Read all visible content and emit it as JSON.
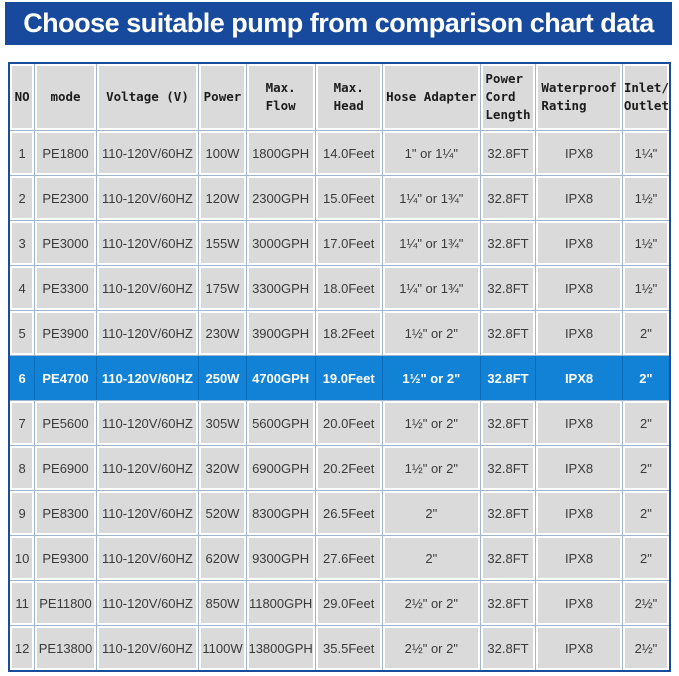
{
  "banner": {
    "title": "Choose suitable pump from comparison chart data",
    "bg_color": "#174A9D",
    "text_color": "#ffffff"
  },
  "colors": {
    "cell_bg": "#DADADA",
    "grid_line": "#9FB6CC",
    "outer_border": "#1A4C9E",
    "highlight_row_bg": "#1182D5",
    "highlight_text": "#ffffff"
  },
  "chart_data": {
    "type": "table",
    "title": "Choose suitable pump from comparison chart data",
    "columns": [
      "NO",
      "mode",
      "Voltage (V)",
      "Power",
      "Max.\nFlow",
      "Max.\nHead",
      "Hose Adapter",
      "Power\nCord\nLength",
      "Waterproof\nRating",
      "Inlet/\nOutlet"
    ],
    "highlighted_row_no": "6",
    "rows": [
      {
        "highlight": false,
        "cells": [
          "1",
          "PE1800",
          "110-120V/60HZ",
          "100W",
          "1800GPH",
          "14.0Feet",
          "1\" or 1¼\"",
          "32.8FT",
          "IPX8",
          "1¼\""
        ]
      },
      {
        "highlight": false,
        "cells": [
          "2",
          "PE2300",
          "110-120V/60HZ",
          "120W",
          "2300GPH",
          "15.0Feet",
          "1¼\" or 1¾\"",
          "32.8FT",
          "IPX8",
          "1½\""
        ]
      },
      {
        "highlight": false,
        "cells": [
          "3",
          "PE3000",
          "110-120V/60HZ",
          "155W",
          "3000GPH",
          "17.0Feet",
          "1¼\" or 1¾\"",
          "32.8FT",
          "IPX8",
          "1½\""
        ]
      },
      {
        "highlight": false,
        "cells": [
          "4",
          "PE3300",
          "110-120V/60HZ",
          "175W",
          "3300GPH",
          "18.0Feet",
          "1¼\" or 1¾\"",
          "32.8FT",
          "IPX8",
          "1½\""
        ]
      },
      {
        "highlight": false,
        "cells": [
          "5",
          "PE3900",
          "110-120V/60HZ",
          "230W",
          "3900GPH",
          "18.2Feet",
          "1½\" or 2\"",
          "32.8FT",
          "IPX8",
          "2\""
        ]
      },
      {
        "highlight": true,
        "cells": [
          "6",
          "PE4700",
          "110-120V/60HZ",
          "250W",
          "4700GPH",
          "19.0Feet",
          "1½\" or 2\"",
          "32.8FT",
          "IPX8",
          "2\""
        ]
      },
      {
        "highlight": false,
        "cells": [
          "7",
          "PE5600",
          "110-120V/60HZ",
          "305W",
          "5600GPH",
          "20.0Feet",
          "1½\" or 2\"",
          "32.8FT",
          "IPX8",
          "2\""
        ]
      },
      {
        "highlight": false,
        "cells": [
          "8",
          "PE6900",
          "110-120V/60HZ",
          "320W",
          "6900GPH",
          "20.2Feet",
          "1½\" or 2\"",
          "32.8FT",
          "IPX8",
          "2\""
        ]
      },
      {
        "highlight": false,
        "cells": [
          "9",
          "PE8300",
          "110-120V/60HZ",
          "520W",
          "8300GPH",
          "26.5Feet",
          "2\"",
          "32.8FT",
          "IPX8",
          "2\""
        ]
      },
      {
        "highlight": false,
        "cells": [
          "10",
          "PE9300",
          "110-120V/60HZ",
          "620W",
          "9300GPH",
          "27.6Feet",
          "2\"",
          "32.8FT",
          "IPX8",
          "2\""
        ]
      },
      {
        "highlight": false,
        "cells": [
          "11",
          "PE11800",
          "110-120V/60HZ",
          "850W",
          "11800GPH",
          "29.0Feet",
          "2½\" or 2\"",
          "32.8FT",
          "IPX8",
          "2½\""
        ]
      },
      {
        "highlight": false,
        "cells": [
          "12",
          "PE13800",
          "110-120V/60HZ",
          "1100W",
          "13800GPH",
          "35.5Feet",
          "2½\" or 2\"",
          "32.8FT",
          "IPX8",
          "2½\""
        ]
      }
    ]
  }
}
